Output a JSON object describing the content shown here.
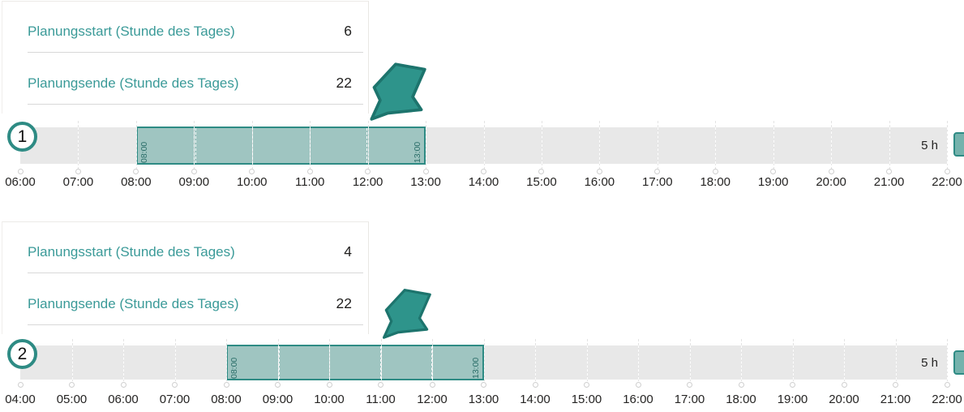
{
  "colors": {
    "accent_teal": "#2e8b84",
    "label_teal": "#3a9a98",
    "selection_fill": "#9fc5c1",
    "track_grey": "#e8e8e8",
    "text_dark": "#201f1e"
  },
  "panels": [
    {
      "fields": [
        {
          "label": "Planungsstart (Stunde des Tages)",
          "value": "6"
        },
        {
          "label": "Planungsende (Stunde des Tages)",
          "value": "22"
        }
      ]
    },
    {
      "fields": [
        {
          "label": "Planungsstart (Stunde des Tages)",
          "value": "4"
        },
        {
          "label": "Planungsende (Stunde des Tages)",
          "value": "22"
        }
      ]
    }
  ],
  "timelines": [
    {
      "badge": "1",
      "axis_start_hour": 6,
      "axis_end_hour": 22,
      "tick_labels": [
        "06:00",
        "07:00",
        "08:00",
        "09:00",
        "10:00",
        "11:00",
        "12:00",
        "13:00",
        "14:00",
        "15:00",
        "16:00",
        "17:00",
        "18:00",
        "19:00",
        "20:00",
        "21:00",
        "22:00"
      ],
      "selection_start_hour": 8,
      "selection_end_hour": 13,
      "selection_start_label": "08:00",
      "selection_end_label": "13:00",
      "duration_label": "5 h"
    },
    {
      "badge": "2",
      "axis_start_hour": 4,
      "axis_end_hour": 22,
      "tick_labels": [
        "04:00",
        "05:00",
        "06:00",
        "07:00",
        "08:00",
        "09:00",
        "10:00",
        "11:00",
        "12:00",
        "13:00",
        "14:00",
        "15:00",
        "16:00",
        "17:00",
        "18:00",
        "19:00",
        "20:00",
        "21:00",
        "22:00"
      ],
      "selection_start_hour": 8,
      "selection_end_hour": 13,
      "selection_start_label": "08:00",
      "selection_end_label": "13:00",
      "duration_label": "5 h"
    }
  ]
}
